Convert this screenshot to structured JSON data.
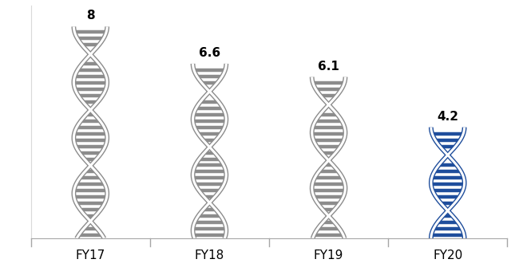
{
  "chart_data": {
    "type": "bar",
    "categories": [
      "FY17",
      "FY18",
      "FY19",
      "FY20"
    ],
    "values": [
      8,
      6.6,
      6.1,
      4.2
    ],
    "colors": [
      "#8c8c8c",
      "#8c8c8c",
      "#8c8c8c",
      "#1f4e9c"
    ],
    "ylim": [
      0,
      8.8
    ],
    "data_labels": true,
    "tick_labels": "x"
  }
}
